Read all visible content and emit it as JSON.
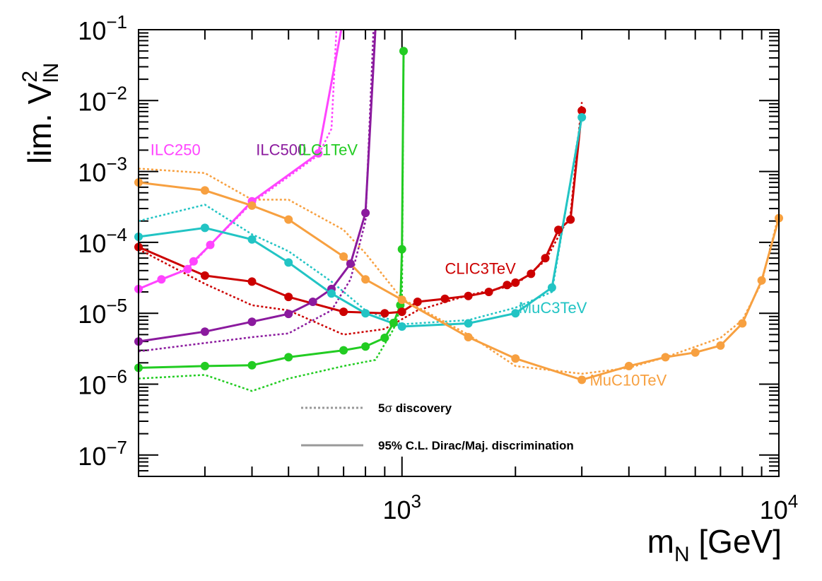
{
  "chart_data": {
    "type": "line",
    "title": "",
    "xlabel": "m_N [GeV]",
    "ylabel": "lim. V_lN^2",
    "xscale": "log",
    "yscale": "log",
    "xlim": [
      200,
      10000
    ],
    "ylim": [
      5e-08,
      0.1
    ],
    "x_ticks": [
      {
        "value": 1000,
        "mantissa": "10",
        "exp": "3"
      },
      {
        "value": 10000,
        "mantissa": "10",
        "exp": "4"
      }
    ],
    "y_ticks": [
      {
        "value": 1e-07,
        "mantissa": "10",
        "exp": "−7"
      },
      {
        "value": 1e-06,
        "mantissa": "10",
        "exp": "−6"
      },
      {
        "value": 1e-05,
        "mantissa": "10",
        "exp": "−5"
      },
      {
        "value": 0.0001,
        "mantissa": "10",
        "exp": "−4"
      },
      {
        "value": 0.001,
        "mantissa": "10",
        "exp": "−3"
      },
      {
        "value": 0.01,
        "mantissa": "10",
        "exp": "−2"
      },
      {
        "value": 0.1,
        "mantissa": "10",
        "exp": "−1"
      }
    ],
    "legend": {
      "placement": "bottom-center",
      "entries": [
        {
          "label_pre": "5",
          "label_sym": "σ",
          "label_post": " discovery",
          "style": "dotted",
          "color": "#999999"
        },
        {
          "label_pre": "95% C.L. Dirac/Maj. discrimination",
          "label_sym": "",
          "label_post": "",
          "style": "solid",
          "color": "#999999"
        }
      ]
    },
    "series": [
      {
        "name": "ILC250",
        "color": "#FF44FF",
        "label": {
          "text": "ILC250",
          "x": 215,
          "y": 0.0017
        },
        "solid": [
          [
            200,
            2.2e-05
          ],
          [
            230,
            3e-05
          ],
          [
            270,
            4.2e-05
          ],
          [
            280,
            5.4e-05
          ],
          [
            310,
            9.2e-05
          ],
          [
            400,
            0.00038
          ],
          [
            600,
            0.0018
          ],
          [
            690,
            0.1
          ]
        ],
        "dotted": [
          [
            200,
            2.2e-05
          ],
          [
            270,
            4.2e-05
          ],
          [
            310,
            9.2e-05
          ],
          [
            400,
            0.00036
          ],
          [
            600,
            0.0017
          ],
          [
            650,
            0.004
          ],
          [
            670,
            0.1
          ]
        ]
      },
      {
        "name": "ILC500",
        "color": "#8B1A9E",
        "label": {
          "text": "ILC500",
          "x": 410,
          "y": 0.0017
        },
        "solid": [
          [
            200,
            4e-06
          ],
          [
            300,
            5.5e-06
          ],
          [
            400,
            7.6e-06
          ],
          [
            500,
            9.8e-06
          ],
          [
            580,
            1.45e-05
          ],
          [
            650,
            2.2e-05
          ],
          [
            730,
            5e-05
          ],
          [
            800,
            0.00026
          ],
          [
            850,
            0.1
          ]
        ],
        "dotted": [
          [
            200,
            2.9e-06
          ],
          [
            400,
            4.6e-06
          ],
          [
            500,
            5.2e-06
          ],
          [
            650,
            1.1e-05
          ],
          [
            730,
            3e-05
          ],
          [
            800,
            0.0002
          ],
          [
            840,
            0.1
          ]
        ]
      },
      {
        "name": "ILC1TeV",
        "color": "#22CC22",
        "label": {
          "text": "ILC1TeV",
          "x": 530,
          "y": 0.0017
        },
        "solid": [
          [
            200,
            1.7e-06
          ],
          [
            300,
            1.8e-06
          ],
          [
            400,
            1.85e-06
          ],
          [
            500,
            2.4e-06
          ],
          [
            700,
            3e-06
          ],
          [
            800,
            3.4e-06
          ],
          [
            900,
            4.5e-06
          ],
          [
            950,
            7.3e-06
          ],
          [
            990,
            1.3e-05
          ],
          [
            1000,
            8e-05
          ],
          [
            1010,
            0.05
          ]
        ],
        "dotted": [
          [
            200,
            1.2e-06
          ],
          [
            300,
            1.35e-06
          ],
          [
            400,
            8e-07
          ],
          [
            500,
            1.2e-06
          ],
          [
            700,
            1.8e-06
          ],
          [
            850,
            2.2e-06
          ],
          [
            950,
            6e-06
          ],
          [
            1000,
            1.4e-05
          ],
          [
            1010,
            0.05
          ]
        ]
      },
      {
        "name": "CLIC3TeV",
        "color": "#CC0000",
        "label": {
          "text": "CLIC3TeV",
          "x": 1300,
          "y": 3.6e-05
        },
        "solid": [
          [
            200,
            8.6e-05
          ],
          [
            300,
            3.4e-05
          ],
          [
            400,
            2.8e-05
          ],
          [
            500,
            1.7e-05
          ],
          [
            700,
            1.05e-05
          ],
          [
            900,
            1e-05
          ],
          [
            1000,
            1.05e-05
          ],
          [
            1100,
            1.45e-05
          ],
          [
            1300,
            1.6e-05
          ],
          [
            1500,
            1.75e-05
          ],
          [
            1700,
            2e-05
          ],
          [
            1900,
            2.5e-05
          ],
          [
            2000,
            2.7e-05
          ],
          [
            2200,
            3.6e-05
          ],
          [
            2400,
            6e-05
          ],
          [
            2600,
            0.00015
          ],
          [
            2800,
            0.00021
          ],
          [
            3000,
            0.0072
          ]
        ],
        "dotted": [
          [
            200,
            8e-05
          ],
          [
            300,
            2.6e-05
          ],
          [
            400,
            1.3e-05
          ],
          [
            500,
            1.1e-05
          ],
          [
            700,
            5e-06
          ],
          [
            900,
            6e-06
          ],
          [
            1100,
            1.1e-05
          ],
          [
            1500,
            1.8e-05
          ],
          [
            2000,
            2.5e-05
          ],
          [
            2400,
            5.5e-05
          ],
          [
            2800,
            0.00025
          ],
          [
            3000,
            0.0095
          ]
        ]
      },
      {
        "name": "MuC3TeV",
        "color": "#22C4C4",
        "label": {
          "text": "MuC3TeV",
          "x": 2040,
          "y": 1e-05
        },
        "solid": [
          [
            200,
            0.00012
          ],
          [
            300,
            0.00016
          ],
          [
            400,
            0.00011
          ],
          [
            500,
            5.2e-05
          ],
          [
            650,
            1.9e-05
          ],
          [
            800,
            1e-05
          ],
          [
            1000,
            6.5e-06
          ],
          [
            1500,
            7.2e-06
          ],
          [
            2000,
            1e-05
          ],
          [
            2500,
            2.3e-05
          ],
          [
            3000,
            0.0058
          ]
        ],
        "dotted": [
          [
            200,
            0.0002
          ],
          [
            300,
            0.00034
          ],
          [
            400,
            0.00013
          ],
          [
            500,
            7.5e-05
          ],
          [
            650,
            2.8e-05
          ],
          [
            800,
            1.1e-05
          ],
          [
            1000,
            7e-06
          ],
          [
            1500,
            8e-06
          ],
          [
            2000,
            1.2e-05
          ],
          [
            2500,
            2e-05
          ],
          [
            3000,
            0.0064
          ]
        ]
      },
      {
        "name": "MuC10TeV",
        "color": "#F7A040",
        "label": {
          "text": "MuC10TeV",
          "x": 3150,
          "y": 9.5e-07
        },
        "solid": [
          [
            200,
            0.0007
          ],
          [
            300,
            0.00054
          ],
          [
            400,
            0.00033
          ],
          [
            500,
            0.00021
          ],
          [
            700,
            6.3e-05
          ],
          [
            800,
            3e-05
          ],
          [
            1000,
            1.55e-05
          ],
          [
            1500,
            4.6e-06
          ],
          [
            2000,
            2.3e-06
          ],
          [
            3000,
            1.15e-06
          ],
          [
            4000,
            1.8e-06
          ],
          [
            5000,
            2.4e-06
          ],
          [
            6000,
            2.8e-06
          ],
          [
            7000,
            3.5e-06
          ],
          [
            8000,
            7.2e-06
          ],
          [
            9000,
            2.9e-05
          ],
          [
            10000,
            0.00022
          ]
        ],
        "dotted": [
          [
            200,
            0.0011
          ],
          [
            300,
            0.00095
          ],
          [
            400,
            0.0004
          ],
          [
            500,
            0.0004
          ],
          [
            700,
            0.00015
          ],
          [
            800,
            7e-05
          ],
          [
            1000,
            1.6e-05
          ],
          [
            1500,
            5e-06
          ],
          [
            2000,
            1.8e-06
          ],
          [
            3000,
            1.4e-06
          ],
          [
            4000,
            1.7e-06
          ],
          [
            5000,
            2.4e-06
          ],
          [
            7000,
            4.5e-06
          ],
          [
            8000,
            8e-06
          ],
          [
            9000,
            2.7e-05
          ],
          [
            10000,
            0.00025
          ]
        ]
      }
    ]
  }
}
